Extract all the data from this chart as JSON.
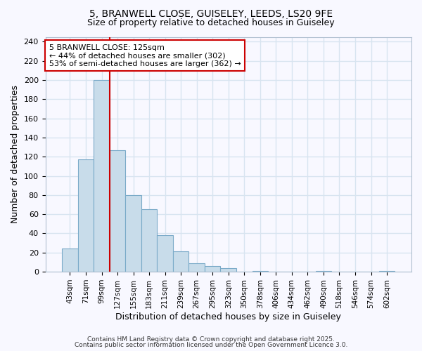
{
  "title_line1": "5, BRANWELL CLOSE, GUISELEY, LEEDS, LS20 9FE",
  "title_line2": "Size of property relative to detached houses in Guiseley",
  "xlabel": "Distribution of detached houses by size in Guiseley",
  "ylabel": "Number of detached properties",
  "bin_labels": [
    "43sqm",
    "71sqm",
    "99sqm",
    "127sqm",
    "155sqm",
    "183sqm",
    "211sqm",
    "239sqm",
    "267sqm",
    "295sqm",
    "323sqm",
    "350sqm",
    "378sqm",
    "406sqm",
    "434sqm",
    "462sqm",
    "490sqm",
    "518sqm",
    "546sqm",
    "574sqm",
    "602sqm"
  ],
  "bar_heights": [
    24,
    117,
    200,
    127,
    80,
    65,
    38,
    21,
    9,
    6,
    4,
    0,
    1,
    0,
    0,
    0,
    1,
    0,
    0,
    0,
    1
  ],
  "bar_color": "#c8dcea",
  "bar_edge_color": "#7aaac8",
  "bar_width": 1.0,
  "vline_color": "#cc0000",
  "vline_x_index": 3,
  "ylim": [
    0,
    245
  ],
  "yticks": [
    0,
    20,
    40,
    60,
    80,
    100,
    120,
    140,
    160,
    180,
    200,
    220,
    240
  ],
  "annotation_text": "5 BRANWELL CLOSE: 125sqm\n← 44% of detached houses are smaller (302)\n53% of semi-detached houses are larger (362) →",
  "background_color": "#f8f8ff",
  "grid_color": "#d8e4f0",
  "footnote_line1": "Contains HM Land Registry data © Crown copyright and database right 2025.",
  "footnote_line2": "Contains public sector information licensed under the Open Government Licence 3.0."
}
